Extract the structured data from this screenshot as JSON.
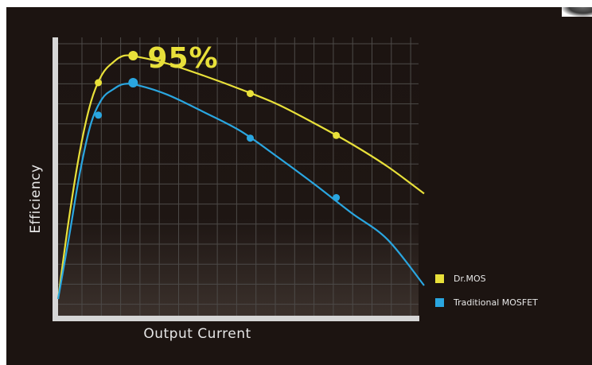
{
  "chart_data": {
    "type": "line",
    "title": "",
    "highlight_label": "95%",
    "xlabel": "Output Current",
    "ylabel": "Efficiency",
    "x_ticks_visible": false,
    "y_ticks_visible": false,
    "grid": true,
    "legend_position": "bottom-right",
    "xlim": [
      0,
      100
    ],
    "ylim": [
      0,
      100
    ],
    "series": [
      {
        "name": "Dr.MOS",
        "color": "#e8e03a",
        "points": [
          [
            0,
            5
          ],
          [
            3,
            35
          ],
          [
            6,
            60
          ],
          [
            9,
            78
          ],
          [
            12,
            88
          ],
          [
            15,
            92.5
          ],
          [
            18,
            95
          ],
          [
            22,
            94.5
          ],
          [
            30,
            92
          ],
          [
            40,
            87.5
          ],
          [
            50,
            82.5
          ],
          [
            60,
            77
          ],
          [
            70,
            70
          ],
          [
            80,
            62.5
          ],
          [
            90,
            54
          ],
          [
            100,
            44
          ]
        ],
        "markers": [
          [
            11,
            85
          ],
          [
            20.5,
            95
          ],
          [
            52.5,
            81
          ],
          [
            76,
            65.5
          ]
        ]
      },
      {
        "name": "Traditional MOSFET",
        "color": "#2aa6e0",
        "points": [
          [
            0,
            5
          ],
          [
            3,
            28
          ],
          [
            6,
            52
          ],
          [
            9,
            70
          ],
          [
            12,
            79
          ],
          [
            15,
            82.5
          ],
          [
            18,
            84.5
          ],
          [
            22,
            84
          ],
          [
            30,
            80.5
          ],
          [
            40,
            74
          ],
          [
            50,
            67
          ],
          [
            60,
            57.5
          ],
          [
            70,
            47.5
          ],
          [
            80,
            37
          ],
          [
            90,
            27
          ],
          [
            100,
            10
          ]
        ],
        "markers": [
          [
            11,
            73
          ],
          [
            20.5,
            85
          ],
          [
            52.5,
            64.5
          ],
          [
            76,
            42.5
          ]
        ]
      }
    ]
  }
}
